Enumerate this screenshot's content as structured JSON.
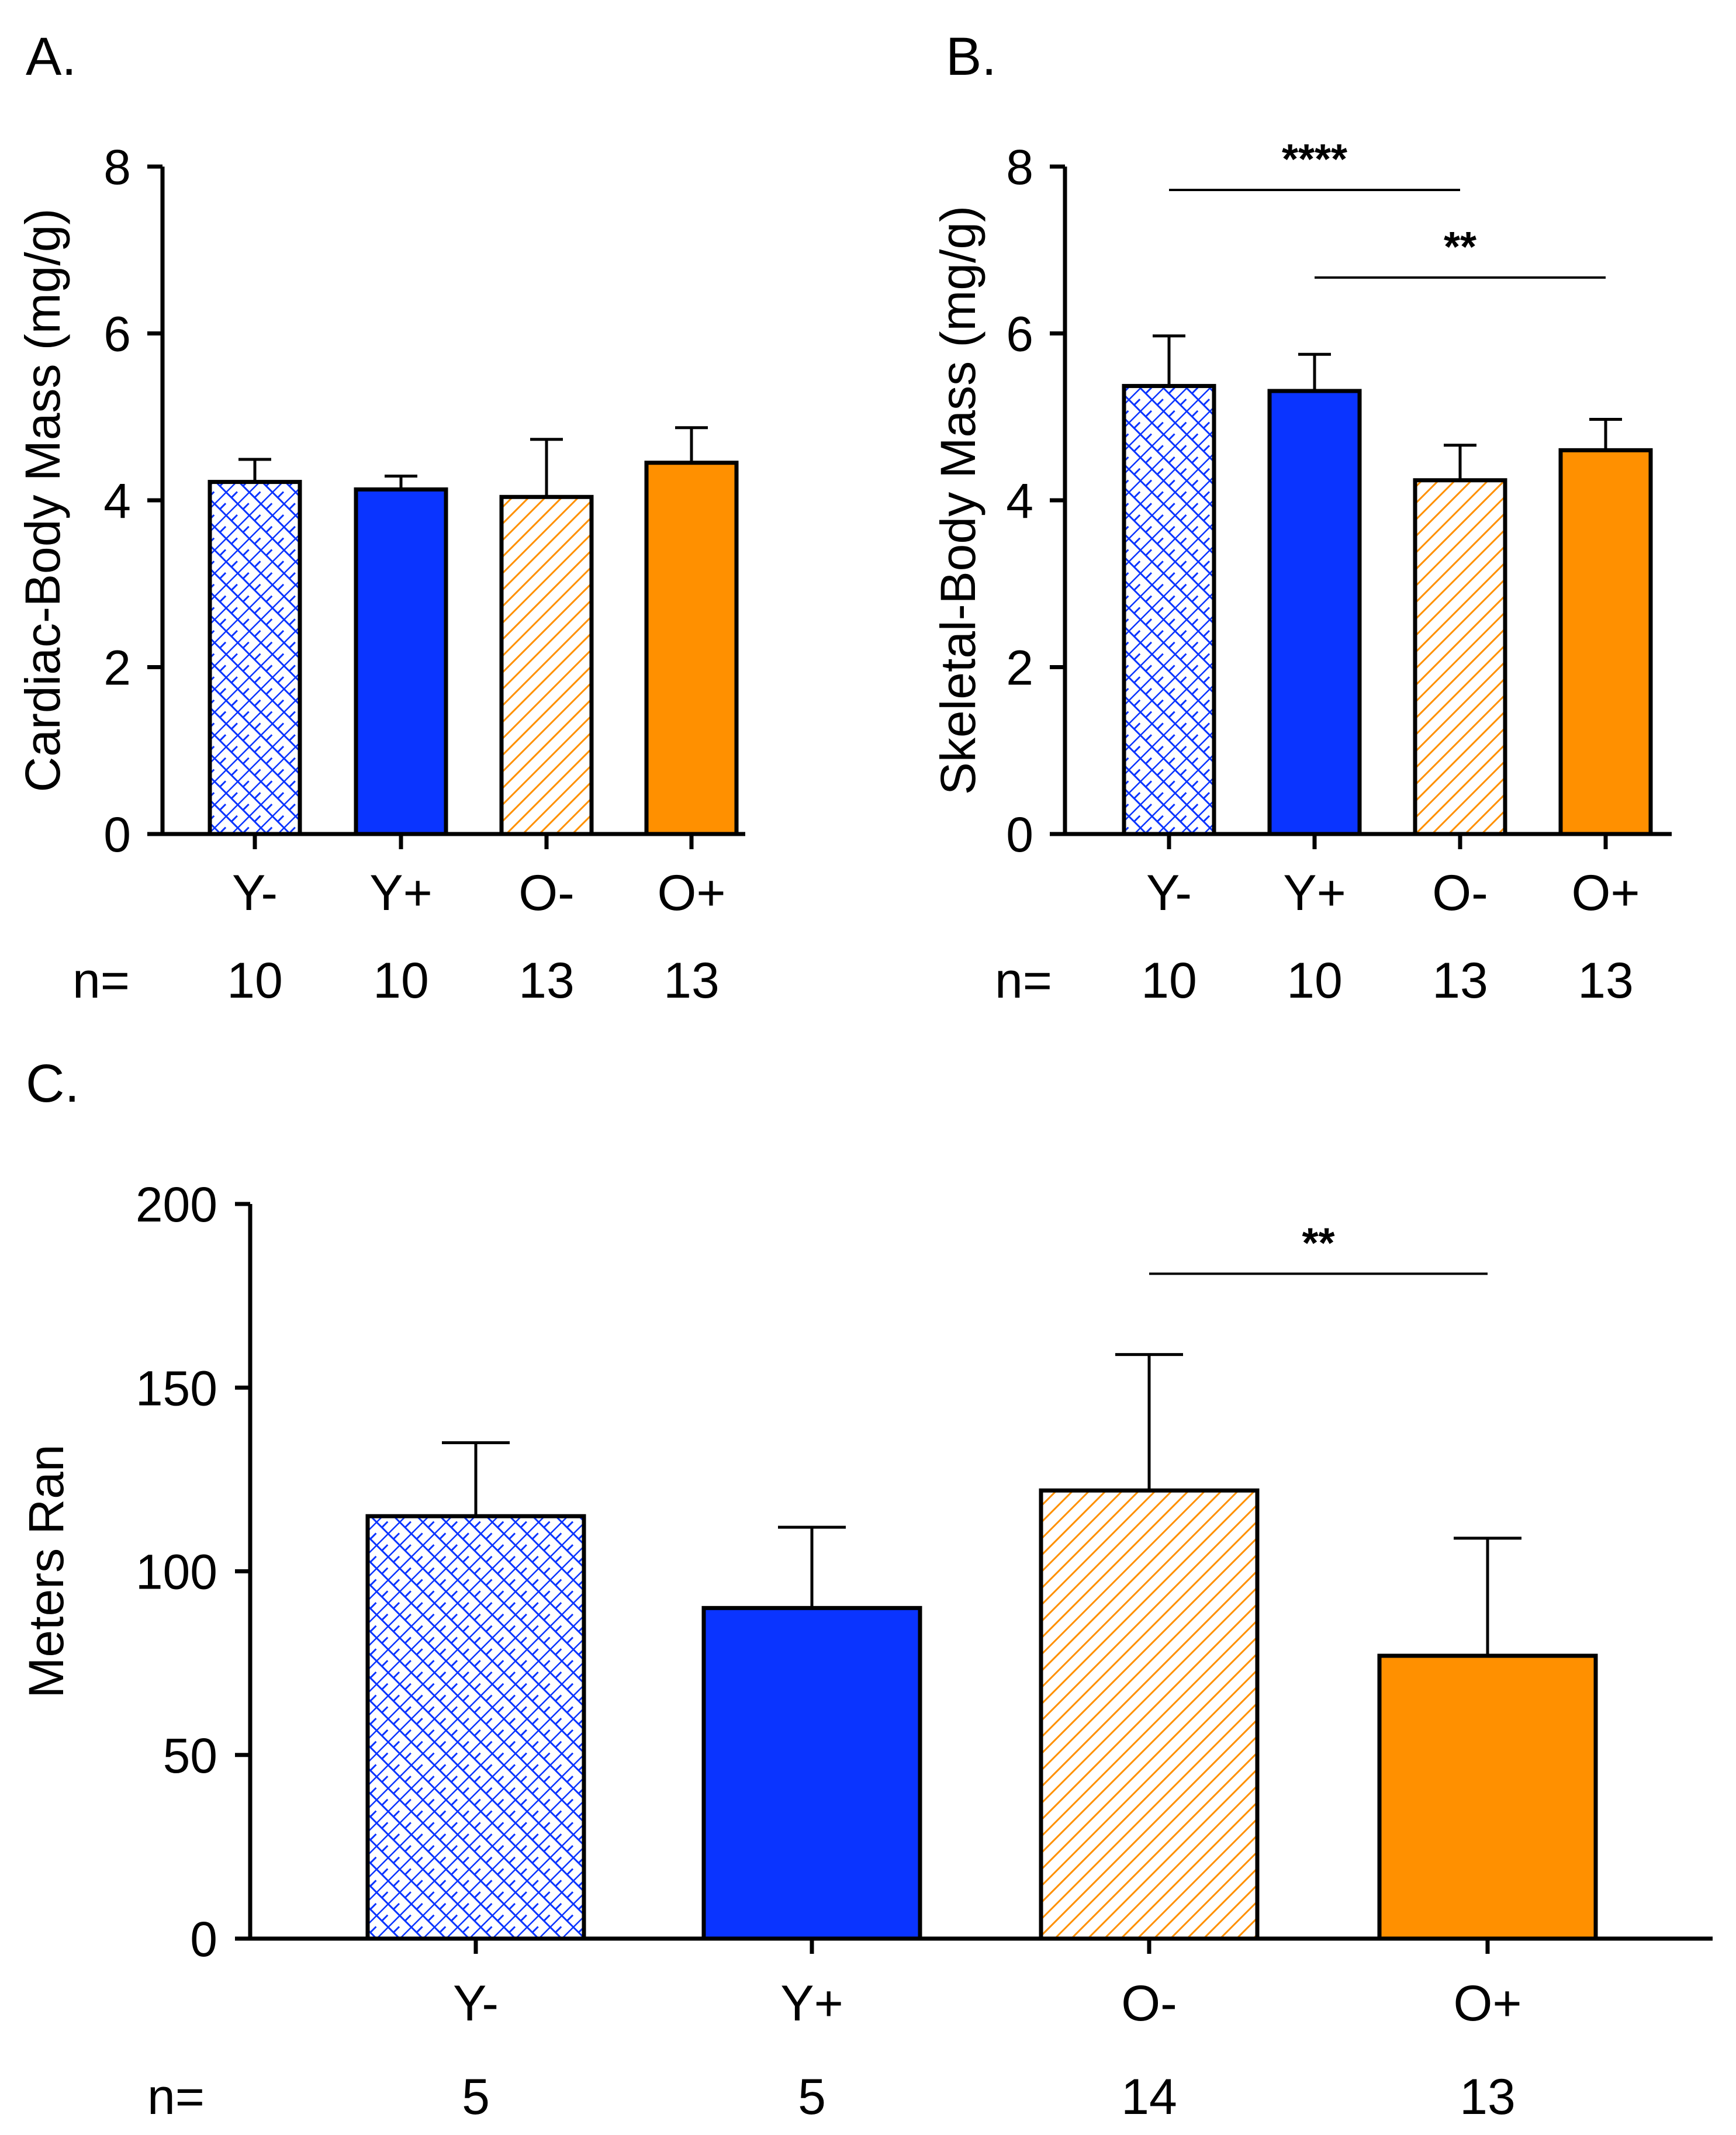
{
  "colors": {
    "blue": "#0A34FF",
    "orange": "#FF9000",
    "axis": "#000000"
  },
  "chart_data": [
    {
      "id": "A",
      "panel_label": "A.",
      "type": "bar",
      "ylabel": "Cardiac-Body Mass (mg/g)",
      "ylim": [
        0,
        8
      ],
      "yticks": [
        0,
        2,
        4,
        6,
        8
      ],
      "categories": [
        "Y-",
        "Y+",
        "O-",
        "O+"
      ],
      "values": [
        4.22,
        4.13,
        4.04,
        4.45
      ],
      "errors": [
        0.27,
        0.16,
        0.69,
        0.42
      ],
      "fill": [
        "crosshatch-blue",
        "solid-blue",
        "diagonal-orange",
        "solid-orange"
      ],
      "n_prefix": "n=",
      "n": [
        "10",
        "10",
        "13",
        "13"
      ],
      "significance": []
    },
    {
      "id": "B",
      "panel_label": "B.",
      "type": "bar",
      "ylabel": "Skeletal-Body Mass (mg/g)",
      "ylim": [
        0,
        8
      ],
      "yticks": [
        0,
        2,
        4,
        6,
        8
      ],
      "categories": [
        "Y-",
        "Y+",
        "O-",
        "O+"
      ],
      "values": [
        5.37,
        5.31,
        4.24,
        4.6
      ],
      "errors": [
        0.6,
        0.44,
        0.42,
        0.37
      ],
      "fill": [
        "crosshatch-blue",
        "solid-blue",
        "diagonal-orange",
        "solid-orange"
      ],
      "n_prefix": "n=",
      "n": [
        "10",
        "10",
        "13",
        "13"
      ],
      "significance": [
        {
          "from": 0,
          "to": 2,
          "y": 7.72,
          "label": "****"
        },
        {
          "from": 1,
          "to": 3,
          "y": 6.67,
          "label": "**"
        }
      ]
    },
    {
      "id": "C",
      "panel_label": "C.",
      "type": "bar",
      "ylabel": "Meters Ran",
      "ylim": [
        0,
        200
      ],
      "yticks": [
        0,
        50,
        100,
        150,
        200
      ],
      "categories": [
        "Y-",
        "Y+",
        "O-",
        "O+"
      ],
      "values": [
        115,
        90,
        122,
        77
      ],
      "errors": [
        20,
        22,
        37,
        32
      ],
      "fill": [
        "crosshatch-blue",
        "solid-blue",
        "diagonal-orange",
        "solid-orange"
      ],
      "n_prefix": "n=",
      "n": [
        "5",
        "5",
        "14",
        "13"
      ],
      "significance": [
        {
          "from": 2,
          "to": 3,
          "y": 181,
          "label": "**"
        }
      ]
    }
  ]
}
